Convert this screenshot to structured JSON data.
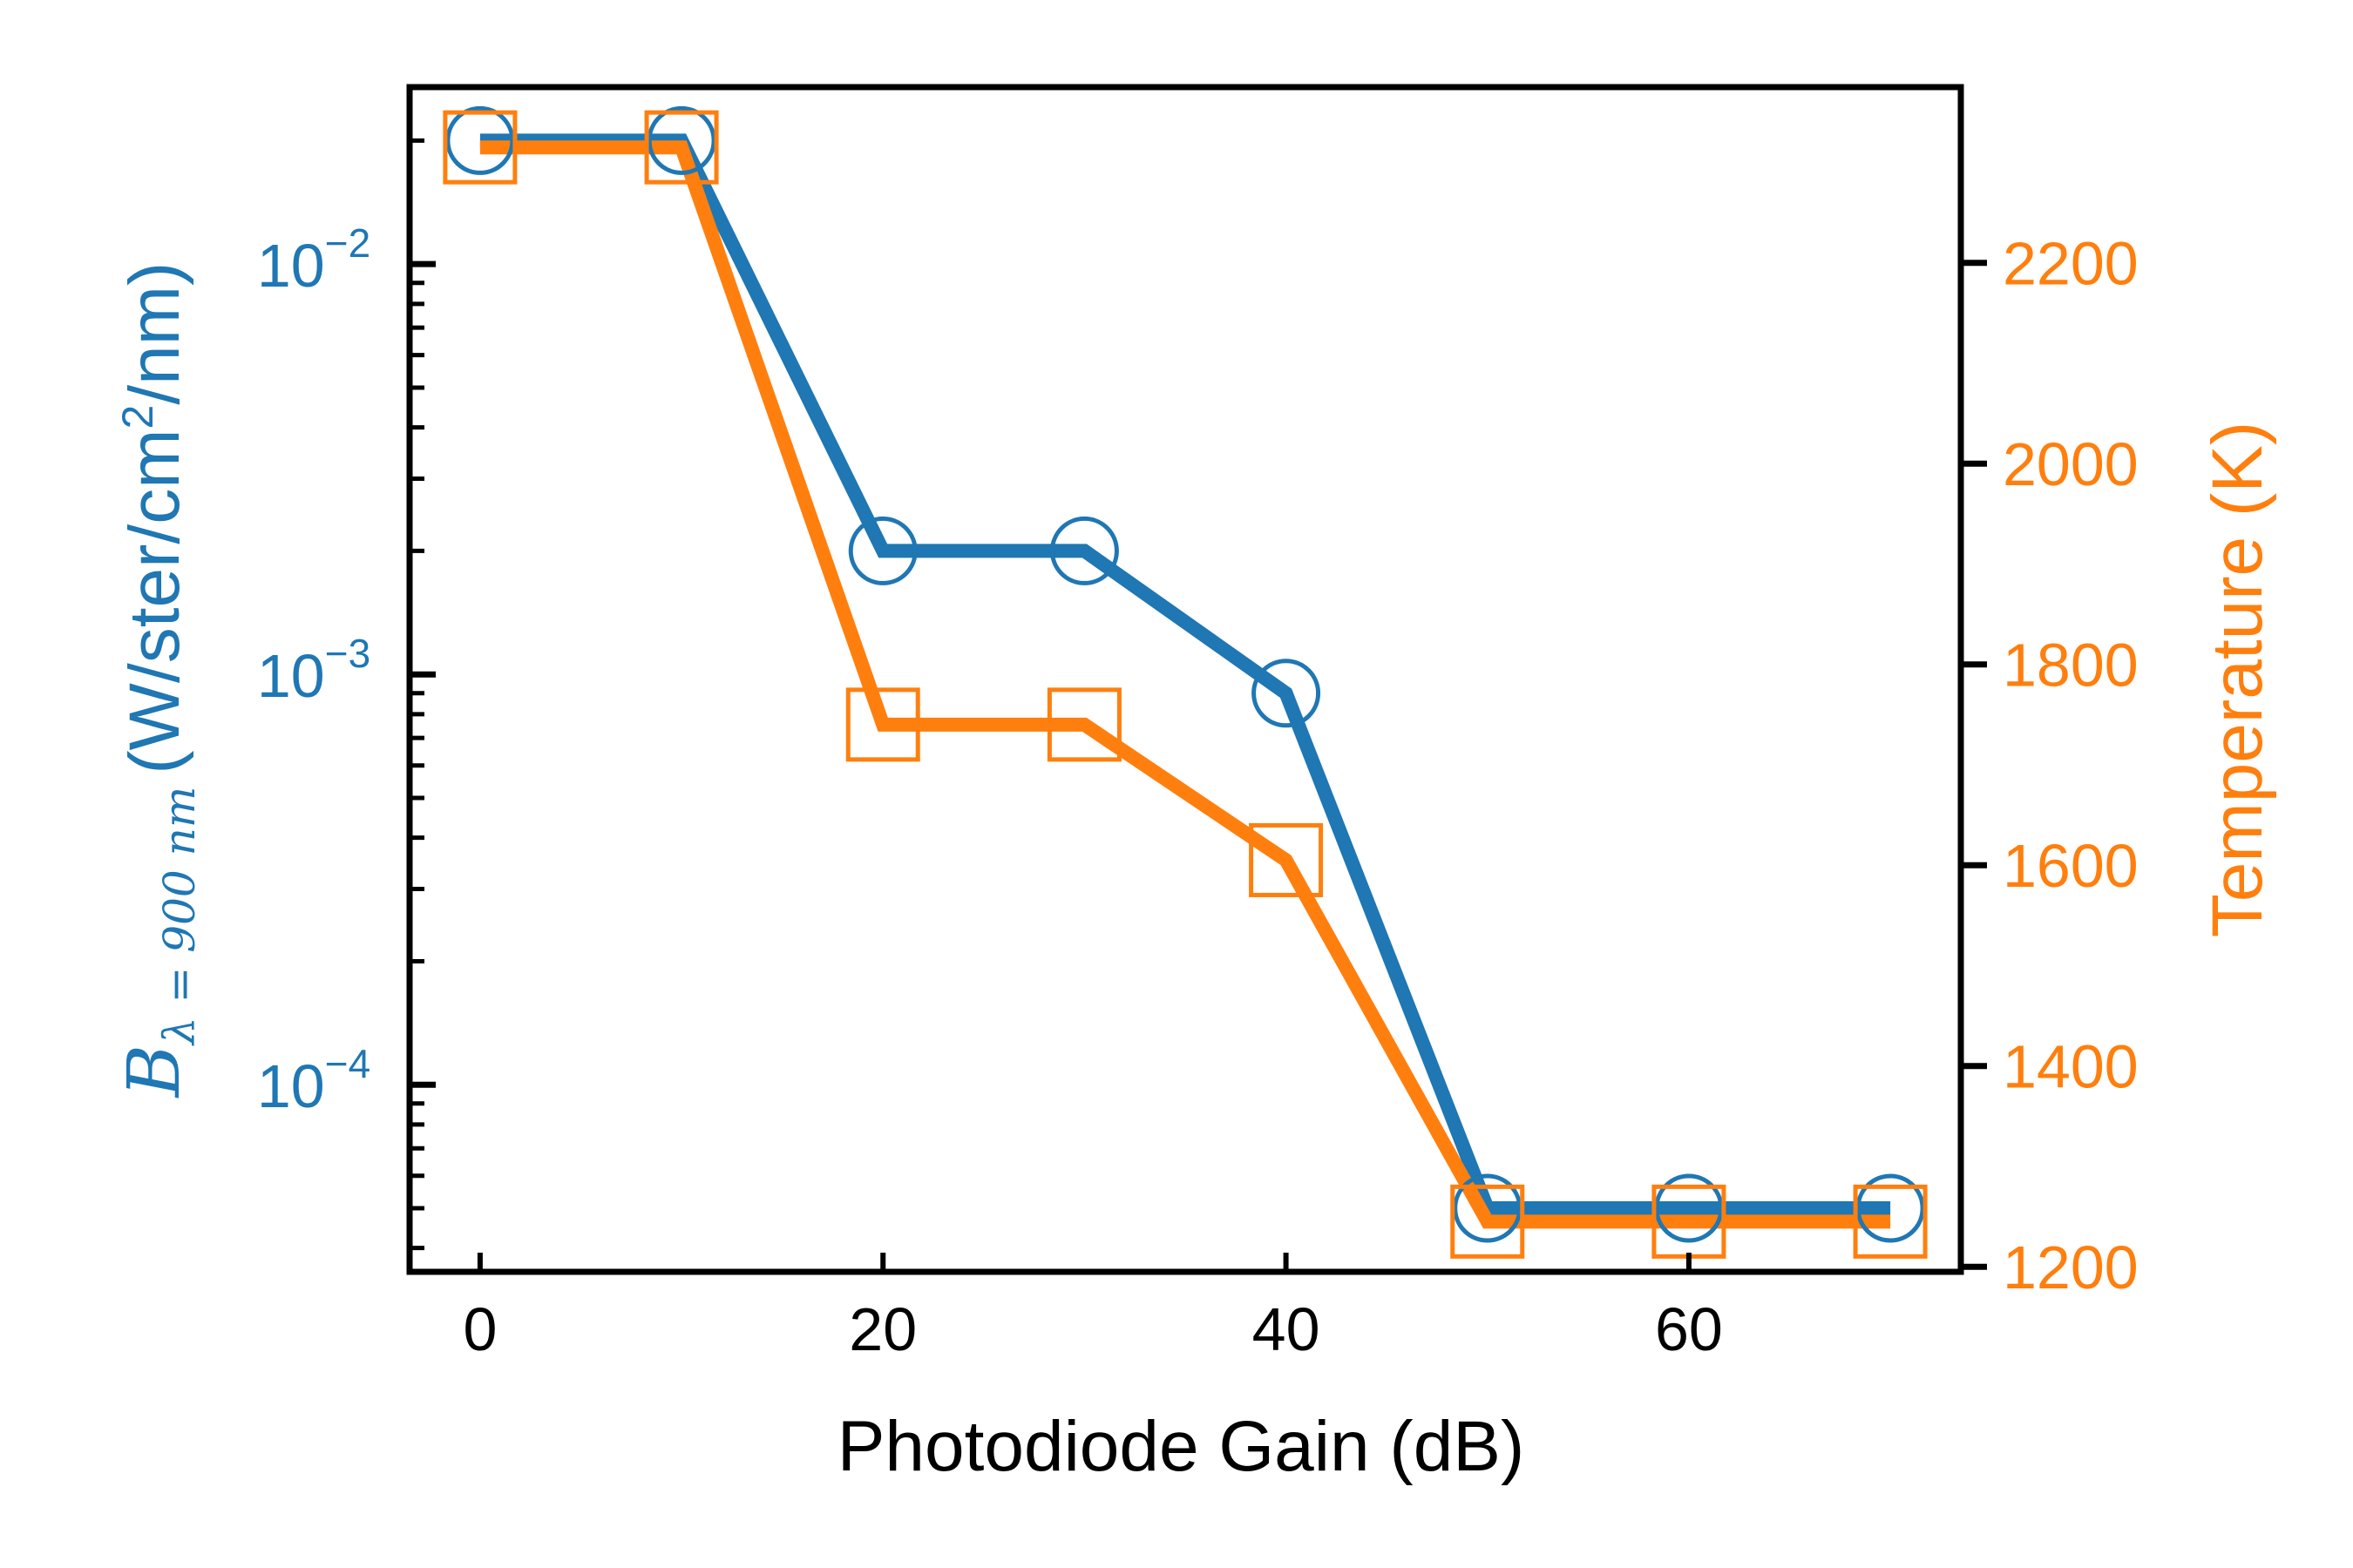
{
  "chart_data": {
    "type": "line",
    "x": [
      0,
      10,
      20,
      30,
      40,
      50,
      60,
      70
    ],
    "xlabel": "Photodiode Gain (dB)",
    "xlim": [
      -3.5,
      73.5
    ],
    "xticks": [
      0,
      20,
      40,
      60
    ],
    "series": [
      {
        "axis": "left",
        "marker": "circle",
        "color": "#1f77b4",
        "values": [
          0.02,
          0.02,
          0.002,
          0.002,
          0.0009,
          5e-05,
          5e-05,
          5e-05
        ]
      },
      {
        "axis": "right",
        "marker": "square",
        "color": "#ff7f0e",
        "values": [
          2315,
          2315,
          1740,
          1740,
          1605,
          1245,
          1245,
          1245
        ]
      }
    ],
    "left_axis": {
      "scale": "log",
      "lim": [
        3.5e-05,
        0.027
      ],
      "major_ticks": [
        0.01,
        0.001,
        0.0001
      ],
      "tick_labels": [
        {
          "base": "10",
          "exp": "−2"
        },
        {
          "base": "10",
          "exp": "−3"
        },
        {
          "base": "10",
          "exp": "−4"
        }
      ],
      "label": {
        "symbol": "B",
        "subscript": "λ = 900 nm",
        "unit_prefix": "(W/ster/cm",
        "unit_exp": "2",
        "unit_suffix": "/nm)"
      }
    },
    "right_axis": {
      "scale": "linear",
      "lim": [
        1195,
        2375
      ],
      "ticks": [
        1200,
        1400,
        1600,
        1800,
        2000,
        2200
      ],
      "tick_labels": [
        "1200",
        "1400",
        "1600",
        "1800",
        "2000",
        "2200"
      ],
      "label": "Temperature (K)"
    },
    "colors": {
      "left": "#1f77b4",
      "right": "#ff7f0e",
      "axes": "#000000"
    },
    "grid": false
  }
}
